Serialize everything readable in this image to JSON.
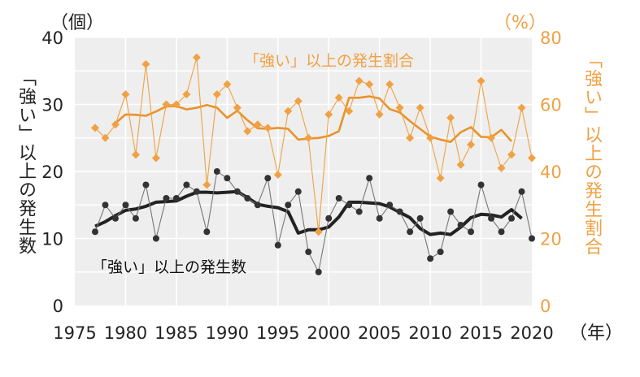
{
  "colors": {
    "count_series": "#333333",
    "count_trend": "#222222",
    "ratio_series": "#f0a143",
    "ratio_trend": "#e8932c",
    "grid": "#ffffff",
    "plot_bg": "#eeeeee",
    "orange_text": "#f0a143"
  },
  "chart_data": {
    "type": "line",
    "grid": true,
    "left_axis": {
      "label": "「強い」以上の発生数",
      "unit": "（個）",
      "range": [
        0,
        40
      ],
      "ticks": [
        "0",
        "10",
        "20",
        "30",
        "40"
      ]
    },
    "right_axis": {
      "label": "「強い」以上の発生割合",
      "unit": "（%）",
      "range": [
        0,
        80
      ],
      "ticks": [
        "0",
        "20",
        "40",
        "60",
        "80"
      ]
    },
    "x_axis": {
      "unit": "（年）",
      "range": [
        1975,
        2020
      ],
      "ticks": [
        "1975",
        "1980",
        "1985",
        "1990",
        "1995",
        "2000",
        "2005",
        "2010",
        "2015",
        "2020"
      ]
    },
    "x": [
      1977,
      1978,
      1979,
      1980,
      1981,
      1982,
      1983,
      1984,
      1985,
      1986,
      1987,
      1988,
      1989,
      1990,
      1991,
      1992,
      1993,
      1994,
      1995,
      1996,
      1997,
      1998,
      1999,
      2000,
      2001,
      2002,
      2003,
      2004,
      2005,
      2006,
      2007,
      2008,
      2009,
      2010,
      2011,
      2012,
      2013,
      2014,
      2015,
      2016,
      2017,
      2018,
      2019,
      2020
    ],
    "series": [
      {
        "name": "「強い」以上の発生数",
        "axis": "left",
        "values": [
          11,
          15,
          13,
          15,
          13,
          18,
          10,
          16,
          16,
          18,
          17,
          11,
          20,
          19,
          17,
          16,
          15,
          19,
          9,
          15,
          17,
          8,
          5,
          13,
          16,
          15,
          14,
          19,
          13,
          15,
          14,
          11,
          13,
          7,
          8,
          14,
          12,
          11,
          18,
          13,
          11,
          13,
          17,
          10
        ],
        "trend": [
          11.8,
          12.5,
          13.4,
          14.2,
          14.4,
          14.8,
          15.4,
          15.5,
          15.6,
          16.3,
          16.9,
          16.9,
          16.8,
          16.9,
          17.0,
          16.1,
          15.1,
          14.8,
          14.6,
          14.0,
          10.8,
          11.3,
          11.3,
          11.7,
          13.2,
          15.4,
          15.4,
          15.3,
          15.2,
          14.7,
          13.9,
          13.1,
          11.5,
          10.6,
          10.8,
          10.6,
          11.7,
          13.1,
          13.6,
          13.5,
          13.2,
          14.3,
          13.0,
          null
        ]
      },
      {
        "name": "「強い」以上の発生割合",
        "axis": "right",
        "values": [
          53,
          50,
          54,
          63,
          45,
          72,
          44,
          60,
          60,
          63,
          74,
          36,
          63,
          66,
          59,
          52,
          54,
          53,
          39,
          58,
          61,
          50,
          22,
          57,
          62,
          58,
          67,
          66,
          57,
          66,
          59,
          50,
          59,
          50,
          38,
          56,
          42,
          48,
          67,
          50,
          41,
          45,
          59,
          44
        ],
        "trend": [
          null,
          null,
          54.4,
          57.0,
          56.9,
          56.6,
          57.9,
          59.4,
          59.5,
          58.5,
          59.0,
          59.8,
          59.0,
          56.0,
          58.1,
          55.3,
          52.9,
          52.7,
          53.0,
          52.7,
          49.5,
          49.8,
          50.0,
          50.6,
          52.0,
          62.0,
          62.0,
          62.4,
          61.8,
          58.6,
          57.6,
          55.0,
          52.7,
          50.4,
          49.5,
          48.8,
          51.7,
          53.2,
          50.3,
          50.2,
          52.4,
          49.0,
          null,
          null
        ]
      }
    ]
  }
}
